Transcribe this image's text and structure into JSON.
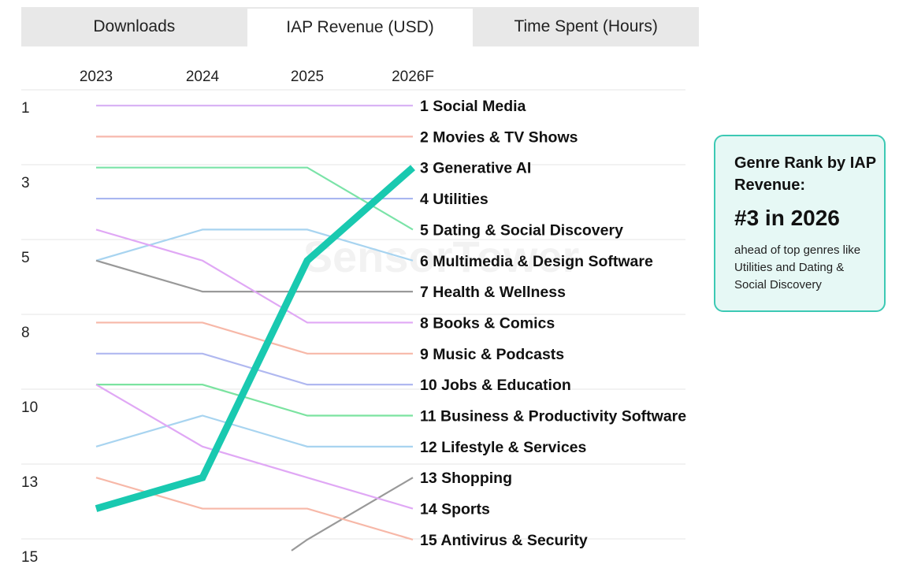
{
  "tabs": [
    {
      "label": "Downloads",
      "active": false
    },
    {
      "label": "IAP Revenue (USD)",
      "active": true
    },
    {
      "label": "Time Spent (Hours)",
      "active": false
    }
  ],
  "callout": {
    "title": "Genre Rank by IAP Revenue:",
    "highlight": "#3 in 2026",
    "body": "ahead of top genres like Utilities and Dating & Social Discovery",
    "border_color": "#3cc9b4",
    "background": "#e6f8f5"
  },
  "watermark": "SensorTower",
  "chart_data": {
    "type": "line",
    "subtype": "bump",
    "x": [
      "2023",
      "2024",
      "2025",
      "2026F"
    ],
    "ylabel_ticks": [
      "1",
      "3",
      "5",
      "8",
      "10",
      "13",
      "15"
    ],
    "y_reversed": true,
    "grid": true,
    "series": [
      {
        "name": "Social Media",
        "end_label": "1 Social Media",
        "values": [
          1,
          1,
          1,
          1
        ],
        "color": "#d9b3f5"
      },
      {
        "name": "Movies & TV Shows",
        "end_label": "2 Movies & TV Shows",
        "values": [
          2,
          2,
          2,
          2
        ],
        "color": "#f7b8ad"
      },
      {
        "name": "Generative AI",
        "end_label": "3 Generative AI",
        "values": [
          14,
          13,
          6,
          3
        ],
        "color": "#19c9b0",
        "highlight": true
      },
      {
        "name": "Utilities",
        "end_label": "4 Utilities",
        "values": [
          4,
          4,
          4,
          4
        ],
        "color": "#a9b6f0"
      },
      {
        "name": "Dating & Social Discovery",
        "end_label": "5 Dating & Social Discovery",
        "values": [
          3,
          3,
          3,
          5
        ],
        "color": "#7be3a8"
      },
      {
        "name": "Multimedia & Design Software",
        "end_label": "6 Multimedia & Design Software",
        "values": [
          6,
          5,
          5,
          6
        ],
        "color": "#a8d4f0"
      },
      {
        "name": "Health & Wellness",
        "end_label": "7 Health & Wellness",
        "values": [
          6,
          7,
          7,
          7
        ],
        "color": "#999999"
      },
      {
        "name": "Books & Comics",
        "end_label": "8 Books & Comics",
        "values": [
          5,
          6,
          8,
          8
        ],
        "color": "#e0a8f5"
      },
      {
        "name": "Music & Podcasts",
        "end_label": "9 Music & Podcasts",
        "values": [
          8,
          8,
          9,
          9
        ],
        "color": "#f7b8a8"
      },
      {
        "name": "Jobs & Education",
        "end_label": "10 Jobs & Education",
        "values": [
          9,
          9,
          10,
          10
        ],
        "color": "#b0b8f0"
      },
      {
        "name": "Business & Productivity Software",
        "end_label": "11 Business & Productivity Software",
        "values": [
          10,
          10,
          11,
          11
        ],
        "color": "#7be3a0"
      },
      {
        "name": "Lifestyle & Services",
        "end_label": "12 Lifestyle & Services",
        "values": [
          12,
          11,
          12,
          12
        ],
        "color": "#a8d4f0"
      },
      {
        "name": "Shopping",
        "end_label": "13 Shopping",
        "values": [
          null,
          null,
          15,
          13
        ],
        "color": "#999999"
      },
      {
        "name": "Sports",
        "end_label": "14 Sports",
        "values": [
          10,
          12,
          13,
          14
        ],
        "color": "#e0a8f5"
      },
      {
        "name": "Antivirus & Security",
        "end_label": "15 Antivirus & Security",
        "values": [
          13,
          14,
          14,
          15
        ],
        "color": "#f7b8a8"
      }
    ]
  }
}
